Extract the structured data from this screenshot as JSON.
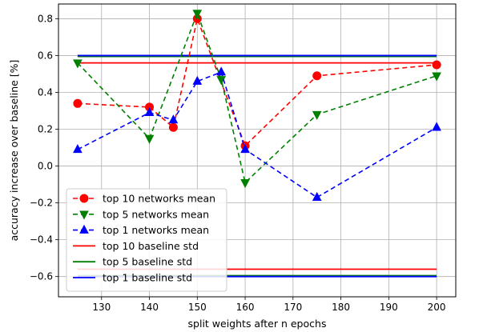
{
  "chart_data": {
    "type": "line",
    "title": "",
    "xlabel": "split weights after n epochs",
    "ylabel": "accuracy increase over baseline [%]",
    "xlim": [
      121,
      204
    ],
    "ylim": [
      -0.71,
      0.88
    ],
    "xticks": [
      130,
      140,
      150,
      160,
      170,
      180,
      190,
      200
    ],
    "yticks": [
      -0.6,
      -0.4,
      -0.2,
      0.0,
      0.2,
      0.4,
      0.6,
      0.8
    ],
    "xtick_labels": [
      "130",
      "140",
      "150",
      "160",
      "170",
      "180",
      "190",
      "200"
    ],
    "ytick_labels": [
      "−0.6",
      "−0.4",
      "−0.2",
      "0.0",
      "0.2",
      "0.4",
      "0.6",
      "0.8"
    ],
    "grid": true,
    "legend_position": "lower-left",
    "series": [
      {
        "name": "top 10 networks mean",
        "kind": "dashed-markers",
        "marker": "circle",
        "color": "#ff0000",
        "x": [
          125,
          140,
          145,
          150,
          160,
          175,
          200
        ],
        "y": [
          0.34,
          0.32,
          0.21,
          0.8,
          0.11,
          0.49,
          0.55
        ]
      },
      {
        "name": "top 5 networks mean",
        "kind": "dashed-markers",
        "marker": "triangle-down",
        "color": "#008000",
        "x": [
          125,
          140,
          150,
          155,
          160,
          175,
          200
        ],
        "y": [
          0.56,
          0.15,
          0.83,
          0.47,
          -0.09,
          0.28,
          0.49
        ]
      },
      {
        "name": "top 1 networks mean",
        "kind": "dashed-markers",
        "marker": "triangle-up",
        "color": "#0000ff",
        "x": [
          125,
          140,
          145,
          150,
          155,
          160,
          175,
          200
        ],
        "y": [
          0.09,
          0.29,
          0.25,
          0.46,
          0.51,
          0.09,
          -0.17,
          0.21
        ]
      },
      {
        "name": "top 10 baseline std",
        "kind": "solid-hline-pair",
        "color": "#ff0000",
        "x": [
          125,
          200
        ],
        "y": [
          0.56,
          -0.56
        ]
      },
      {
        "name": "top 5 baseline std",
        "kind": "solid-hline-pair",
        "color": "#008000",
        "x": [
          125,
          200
        ],
        "y": [
          0.595,
          -0.595
        ]
      },
      {
        "name": "top 1 baseline std",
        "kind": "solid-hline-pair",
        "color": "#0000ff",
        "x": [
          125,
          200
        ],
        "y": [
          0.6,
          -0.6
        ]
      }
    ]
  }
}
